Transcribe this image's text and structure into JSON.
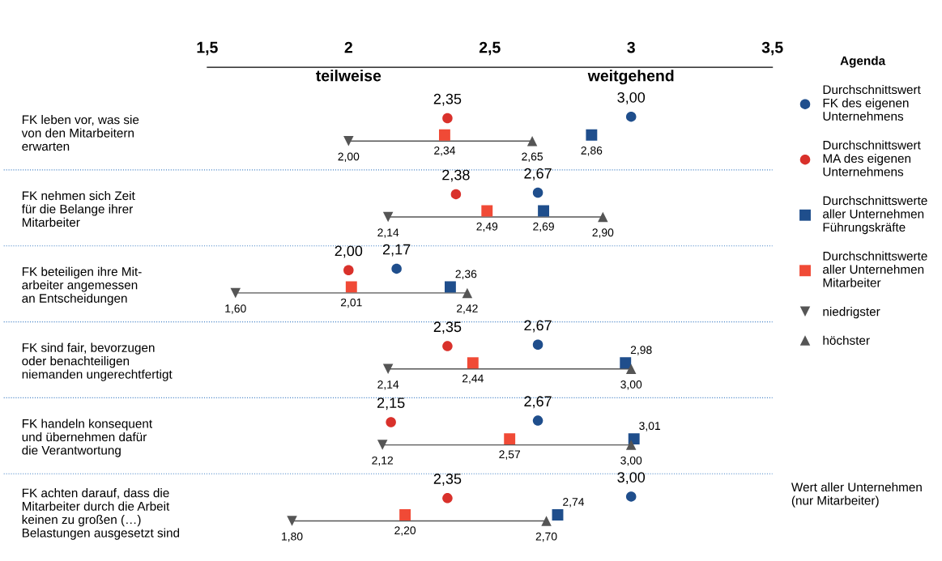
{
  "chart_data": {
    "type": "scatter",
    "orientation": "horizontal",
    "categories": [
      "FK leben vor, was sie\nvon den Mitarbeitern\nerwarten",
      "FK nehmen sich Zeit\nfür die Belange ihrer\nMitarbeiter",
      "FK beteiligen ihre Mit-\narbeiter angemessen\nan Entscheidungen",
      "FK sind fair, bevorzugen\noder benachteiligen\nniemanden ungerechtfertigt",
      "FK handeln konsequent\nund übernehmen dafür\ndie Verantwortung",
      "FK achten darauf, dass die\nMitarbeiter durch die Arbeit\nkeinen zu großen (…)\nBelastungen ausgesetzt sind"
    ],
    "series": [
      {
        "name": "Durchschnittswert\nFK des eigenen\nUnternehmens",
        "color": "#1f4e8c",
        "marker": "circle",
        "values": [
          3.0,
          2.67,
          2.17,
          2.67,
          2.67,
          3.0
        ],
        "value_labels": [
          "3,00",
          "2,67",
          "2,17",
          "2,67",
          "2,67",
          "3,00"
        ]
      },
      {
        "name": "Durchschnittswert\nMA des eigenen\nUnternehmens",
        "color": "#d9312b",
        "marker": "circle",
        "values": [
          2.35,
          2.38,
          2.0,
          2.35,
          2.15,
          2.35
        ],
        "value_labels": [
          "2,35",
          "2,38",
          "2,00",
          "2,35",
          "2,15",
          "2,35"
        ]
      },
      {
        "name": "Durchschnittswerte\naller Unternehmen\nFührungskräfte",
        "color": "#1f4e8c",
        "marker": "square",
        "values": [
          2.86,
          2.69,
          2.36,
          2.98,
          3.01,
          2.74
        ],
        "value_labels": [
          "2,86",
          "2,69",
          "2,36",
          "2,98",
          "3,01",
          "2,74"
        ]
      },
      {
        "name": "Durchschnittswerte\naller Unternehmen\nMitarbeiter",
        "color": "#f04a36",
        "marker": "square",
        "values": [
          2.34,
          2.49,
          2.01,
          2.44,
          2.57,
          2.2
        ],
        "value_labels": [
          "2,34",
          "2,49",
          "2,01",
          "2,44",
          "2,57",
          "2,20"
        ]
      },
      {
        "name": "niedrigster",
        "color": "#555555",
        "marker": "triangle_down",
        "values": [
          2.0,
          2.14,
          1.6,
          2.14,
          2.12,
          1.8
        ],
        "value_labels": [
          "2,00",
          "2,14",
          "1,60",
          "2,14",
          "2,12",
          "1,80"
        ]
      },
      {
        "name": "höchster",
        "color": "#555555",
        "marker": "triangle_up",
        "values": [
          2.65,
          2.9,
          2.42,
          3.0,
          3.0,
          2.7
        ],
        "value_labels": [
          "2,65",
          "2,90",
          "2,42",
          "3,00",
          "3,00",
          "2,70"
        ]
      }
    ],
    "xlim": [
      1.5,
      3.5
    ],
    "xticks": [
      {
        "value": 1.5,
        "label": "1,5"
      },
      2,
      {
        "value": 2.5,
        "label": "2,5"
      },
      3,
      {
        "value": 3.5,
        "label": "3,5"
      }
    ],
    "legend": "right",
    "legend_title": "Agenda",
    "annotations": [
      "teilweise",
      "weitgehend",
      "Wert aller Unternehmen\n(nur Mitarbeiter)"
    ]
  }
}
